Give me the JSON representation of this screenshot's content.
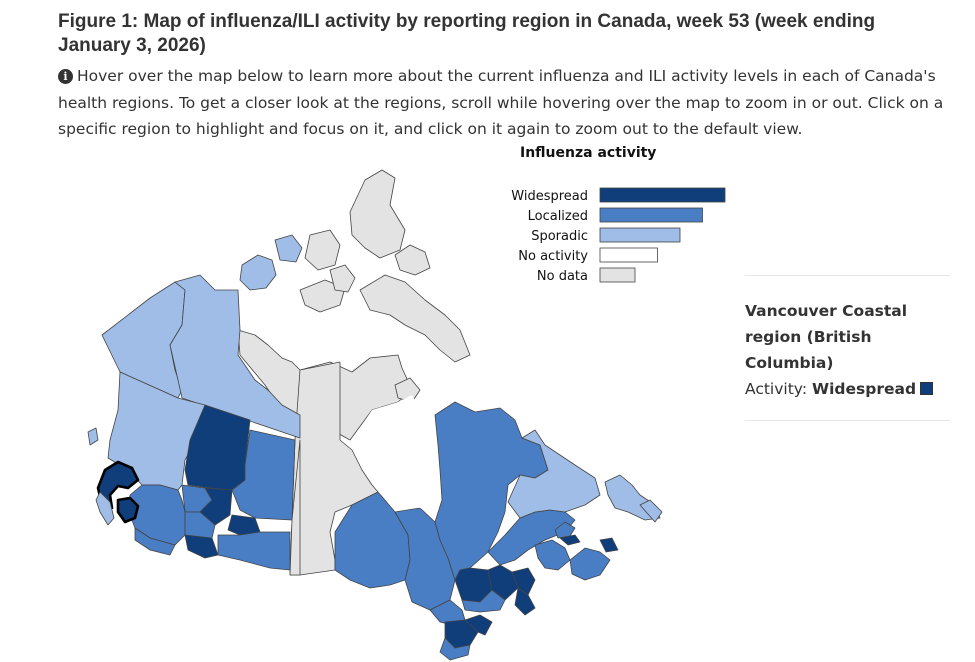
{
  "figure": {
    "title": "Figure 1: Map of influenza/ILI activity by reporting region in Canada, week 53 (week ending January 3, 2026)",
    "description": "Hover over the map below to learn more about the current influenza and ILI activity levels in each of Canada's health regions. To get a closer look at the regions, scroll while hovering over the map to zoom in or out. Click on a specific region to highlight and focus on it, and click on it again to zoom out to the default view.",
    "info_icon": "info-circle-icon"
  },
  "legend": {
    "title": "Influenza activity",
    "items": [
      {
        "label": "Widespread",
        "color": "#0f3e7b",
        "level": 4
      },
      {
        "label": "Localized",
        "color": "#4a7ec4",
        "level": 3
      },
      {
        "label": "Sporadic",
        "color": "#9fbde6",
        "level": 2
      },
      {
        "label": "No activity",
        "color": "#ffffff",
        "level": 1
      },
      {
        "label": "No data",
        "color": "#e3e3e3",
        "level": 0
      }
    ]
  },
  "tooltip": {
    "region_name": "Vancouver Coastal region (British Columbia)",
    "activity_label": "Activity:",
    "activity_value": "Widespread",
    "swatch_color": "#0f3e7b"
  },
  "map": {
    "selected_region": "Vancouver Coastal"
  }
}
